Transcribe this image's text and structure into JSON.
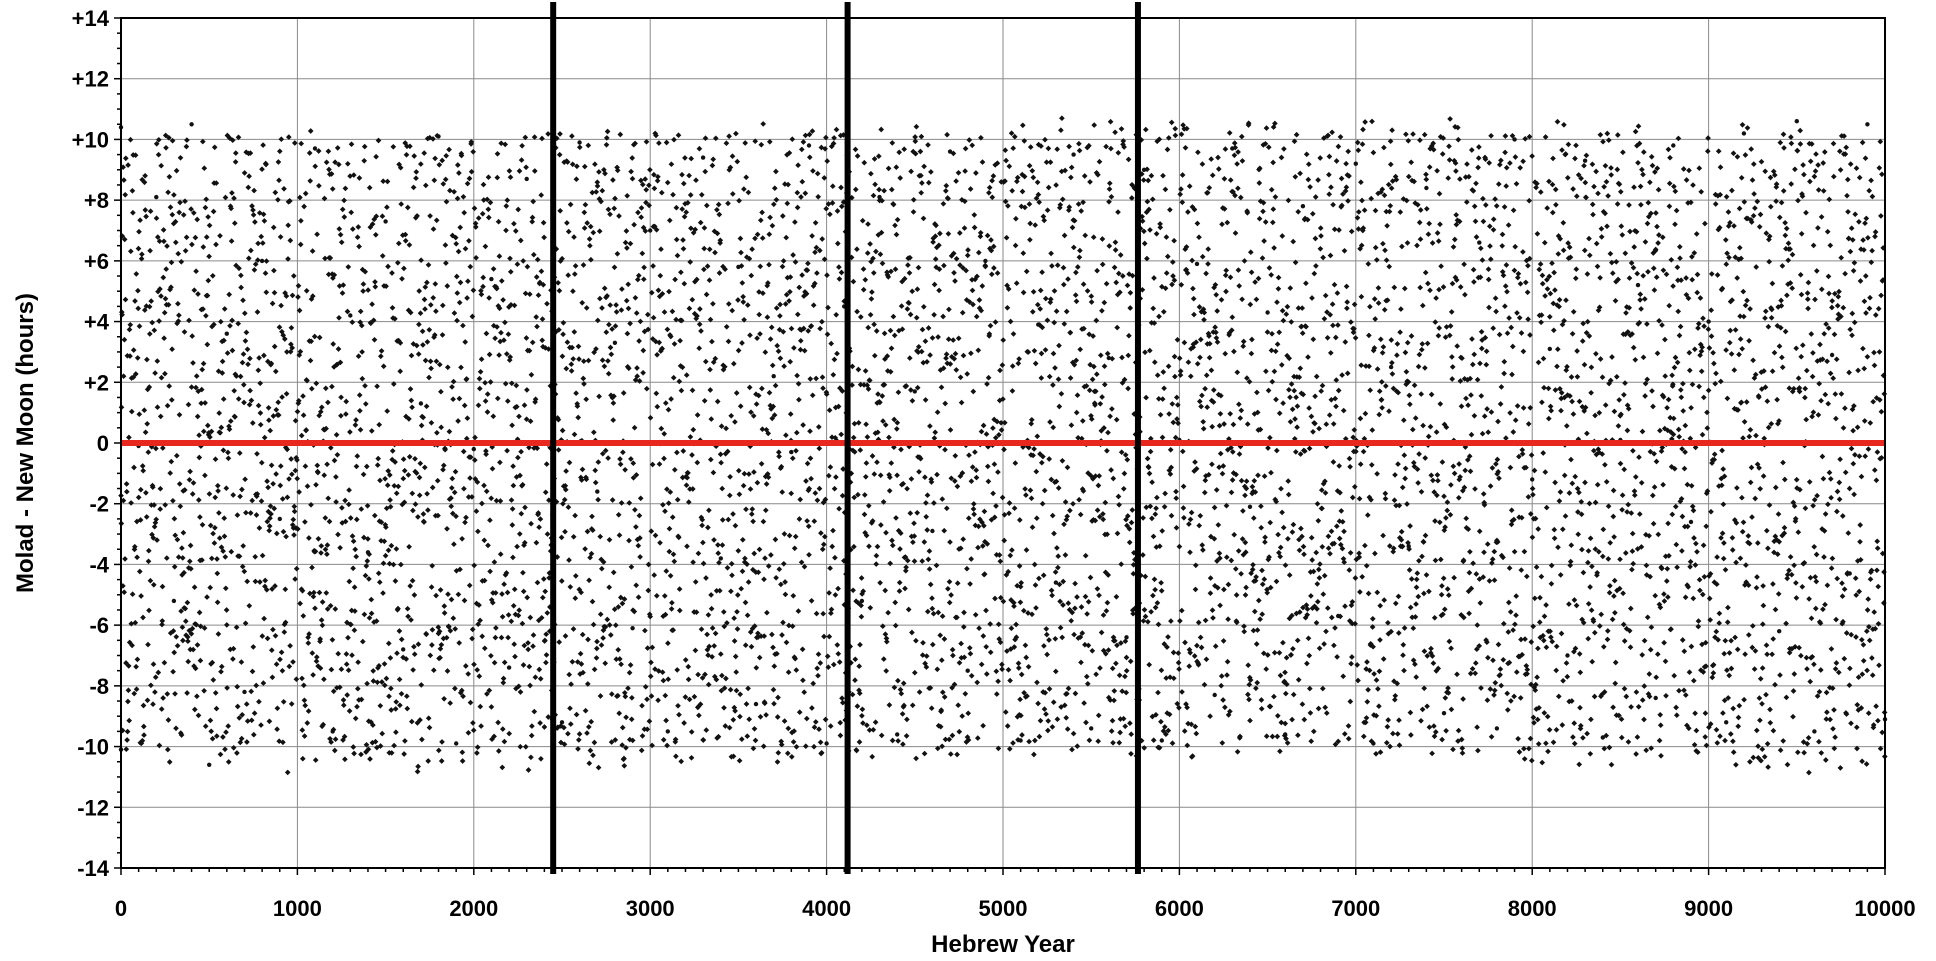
{
  "chart_data": {
    "type": "scatter",
    "title": "",
    "xlabel": "Hebrew Year",
    "ylabel": "Molad - New Moon (hours)",
    "xlim": [
      0,
      10000
    ],
    "ylim": [
      -14,
      14
    ],
    "x_ticks": [
      0,
      1000,
      2000,
      3000,
      4000,
      5000,
      6000,
      7000,
      8000,
      9000,
      10000
    ],
    "x_tick_labels": [
      "0",
      "1000",
      "2000",
      "3000",
      "4000",
      "5000",
      "6000",
      "7000",
      "8000",
      "9000",
      "10000"
    ],
    "y_ticks": [
      14,
      12,
      10,
      8,
      6,
      4,
      2,
      0,
      -2,
      -4,
      -6,
      -8,
      -10,
      -12,
      -14
    ],
    "y_tick_labels": [
      "+14",
      "+12",
      "+10",
      "+8",
      "+6",
      "+4",
      "+2",
      "0",
      "-2",
      "-4",
      "-6",
      "-8",
      "-10",
      "-12",
      "-14"
    ],
    "grid": true,
    "legend": "none",
    "reference_line": {
      "y": 0,
      "color": "#e8281e"
    },
    "vertical_markers": [
      2450,
      4119,
      5765
    ],
    "marker_color": "#000000",
    "point_color": "#111111",
    "series": [
      {
        "sampled_points": [
          [
            0,
            10.4
          ],
          [
            0,
            -10.1
          ],
          [
            100,
            -0.1
          ],
          [
            200,
            8.1
          ],
          [
            300,
            -5.2
          ],
          [
            400,
            10.5
          ],
          [
            500,
            -10.6
          ],
          [
            600,
            3.6
          ],
          [
            700,
            -8.2
          ],
          [
            800,
            6.0
          ],
          [
            900,
            -2.5
          ],
          [
            1000,
            0.0
          ],
          [
            1100,
            9.7
          ],
          [
            1200,
            -9.5
          ],
          [
            1300,
            4.2
          ],
          [
            1400,
            -3.6
          ],
          [
            1500,
            7.3
          ],
          [
            1600,
            -6.8
          ],
          [
            1700,
            1.3
          ],
          [
            1800,
            10.1
          ],
          [
            1900,
            -9.9
          ],
          [
            2000,
            -0.2
          ],
          [
            2100,
            5.4
          ],
          [
            2200,
            -7.4
          ],
          [
            2300,
            8.7
          ],
          [
            2400,
            0.0
          ],
          [
            2500,
            -9.2
          ],
          [
            2600,
            9.9
          ],
          [
            2700,
            -1.6
          ],
          [
            2800,
            3.3
          ],
          [
            2900,
            -6.1
          ],
          [
            3000,
            7.0
          ],
          [
            3100,
            -9.5
          ],
          [
            3200,
            0.0
          ],
          [
            3300,
            9.4
          ],
          [
            3400,
            -3.8
          ],
          [
            3500,
            5.8
          ],
          [
            3600,
            -8.6
          ],
          [
            3700,
            2.2
          ],
          [
            3800,
            -0.3
          ],
          [
            3900,
            9.8
          ],
          [
            4000,
            -9.9
          ],
          [
            4100,
            4.5
          ],
          [
            4200,
            -5.2
          ],
          [
            4300,
            8.1
          ],
          [
            4400,
            -9.6
          ],
          [
            4500,
            1.7
          ],
          [
            4600,
            -2.9
          ],
          [
            4700,
            9.6
          ],
          [
            4800,
            -7.5
          ],
          [
            4900,
            6.0
          ],
          [
            5000,
            0.0
          ],
          [
            5100,
            -9.8
          ],
          [
            5200,
            3.9
          ],
          [
            5300,
            -4.6
          ],
          [
            5400,
            9.5
          ],
          [
            5500,
            -9.4
          ],
          [
            5600,
            2.8
          ],
          [
            5700,
            -6.4
          ],
          [
            5800,
            9.0
          ],
          [
            5900,
            -9.8
          ],
          [
            6000,
            0.1
          ],
          [
            6100,
            5.9
          ],
          [
            6200,
            -8.3
          ],
          [
            6300,
            9.7
          ],
          [
            6400,
            -2.1
          ],
          [
            6500,
            4.3
          ],
          [
            6600,
            -9.6
          ],
          [
            6700,
            7.8
          ],
          [
            6800,
            0.0
          ],
          [
            6900,
            -5.7
          ],
          [
            7000,
            9.2
          ],
          [
            7100,
            -9.9
          ],
          [
            7200,
            2.5
          ],
          [
            7300,
            -3.4
          ],
          [
            7400,
            8.4
          ],
          [
            7500,
            -8.9
          ],
          [
            7600,
            0.0
          ],
          [
            7700,
            6.6
          ],
          [
            7800,
            -9.4
          ],
          [
            7900,
            10.0
          ],
          [
            8000,
            -1.2
          ],
          [
            8100,
            3.1
          ],
          [
            8200,
            -7.0
          ],
          [
            8300,
            9.3
          ],
          [
            8400,
            -9.7
          ],
          [
            8500,
            0.1
          ],
          [
            8600,
            5.2
          ],
          [
            8700,
            -8.4
          ],
          [
            8800,
            9.8
          ],
          [
            8900,
            -2.6
          ],
          [
            9000,
            4.0
          ],
          [
            9100,
            -9.2
          ],
          [
            9200,
            10.2
          ],
          [
            9300,
            0.0
          ],
          [
            9400,
            -6.2
          ],
          [
            9500,
            10.6
          ],
          [
            9600,
            -9.5
          ],
          [
            9700,
            2.9
          ],
          [
            9800,
            -4.3
          ],
          [
            9900,
            10.5
          ],
          [
            10000,
            -9.1
          ]
        ]
      }
    ]
  }
}
